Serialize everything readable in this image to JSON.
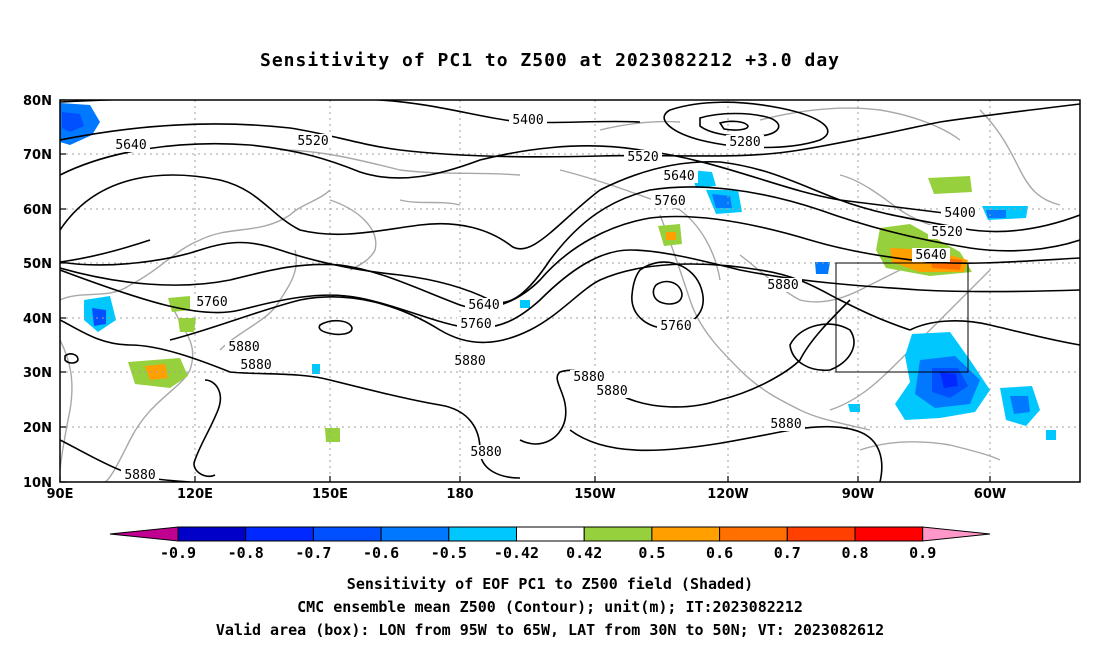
{
  "title": "Sensitivity of PC1 to Z500 at 2023082212 +3.0 day",
  "map": {
    "lon_labels": [
      "90E",
      "120E",
      "150E",
      "180",
      "150W",
      "120W",
      "90W",
      "60W"
    ],
    "lat_labels": [
      "80N",
      "70N",
      "60N",
      "50N",
      "40N",
      "30N",
      "20N",
      "10N"
    ],
    "contour_labels": [
      {
        "text": "5400"
      },
      {
        "text": "5280"
      },
      {
        "text": "5520"
      },
      {
        "text": "5640"
      },
      {
        "text": "5520"
      },
      {
        "text": "5640"
      },
      {
        "text": "5760"
      },
      {
        "text": "5400"
      },
      {
        "text": "5520"
      },
      {
        "text": "5640"
      },
      {
        "text": "5880"
      },
      {
        "text": "5760"
      },
      {
        "text": "5640"
      },
      {
        "text": "5760"
      },
      {
        "text": "5880"
      },
      {
        "text": "5760"
      },
      {
        "text": "5880"
      },
      {
        "text": "5880"
      },
      {
        "text": "5880"
      },
      {
        "text": "5880"
      },
      {
        "text": "5880"
      },
      {
        "text": "5880"
      },
      {
        "text": "5880"
      }
    ],
    "valid_box": {
      "lon_from": "95W",
      "lon_to": "65W",
      "lat_from": "30N",
      "lat_to": "50N"
    }
  },
  "colorbar": {
    "labels": [
      "-0.9",
      "-0.8",
      "-0.7",
      "-0.6",
      "-0.5",
      "-0.42",
      "0.42",
      "0.5",
      "0.6",
      "0.7",
      "0.8",
      "0.9"
    ],
    "colors": [
      "#c00090",
      "#0000c8",
      "#0028ff",
      "#0050ff",
      "#0078ff",
      "#00c8ff",
      "#ffffff",
      "#96d03c",
      "#ffa000",
      "#ff7000",
      "#ff4000",
      "#ff0000",
      "#ff98c8"
    ]
  },
  "captions": {
    "line1": "Sensitivity of EOF PC1 to Z500 field (Shaded)",
    "line2": "CMC ensemble mean Z500 (Contour); unit(m); IT:2023082212",
    "line3": "Valid area (box): LON from 95W to 65W, LAT from 30N to 50N; VT: 2023082612"
  }
}
